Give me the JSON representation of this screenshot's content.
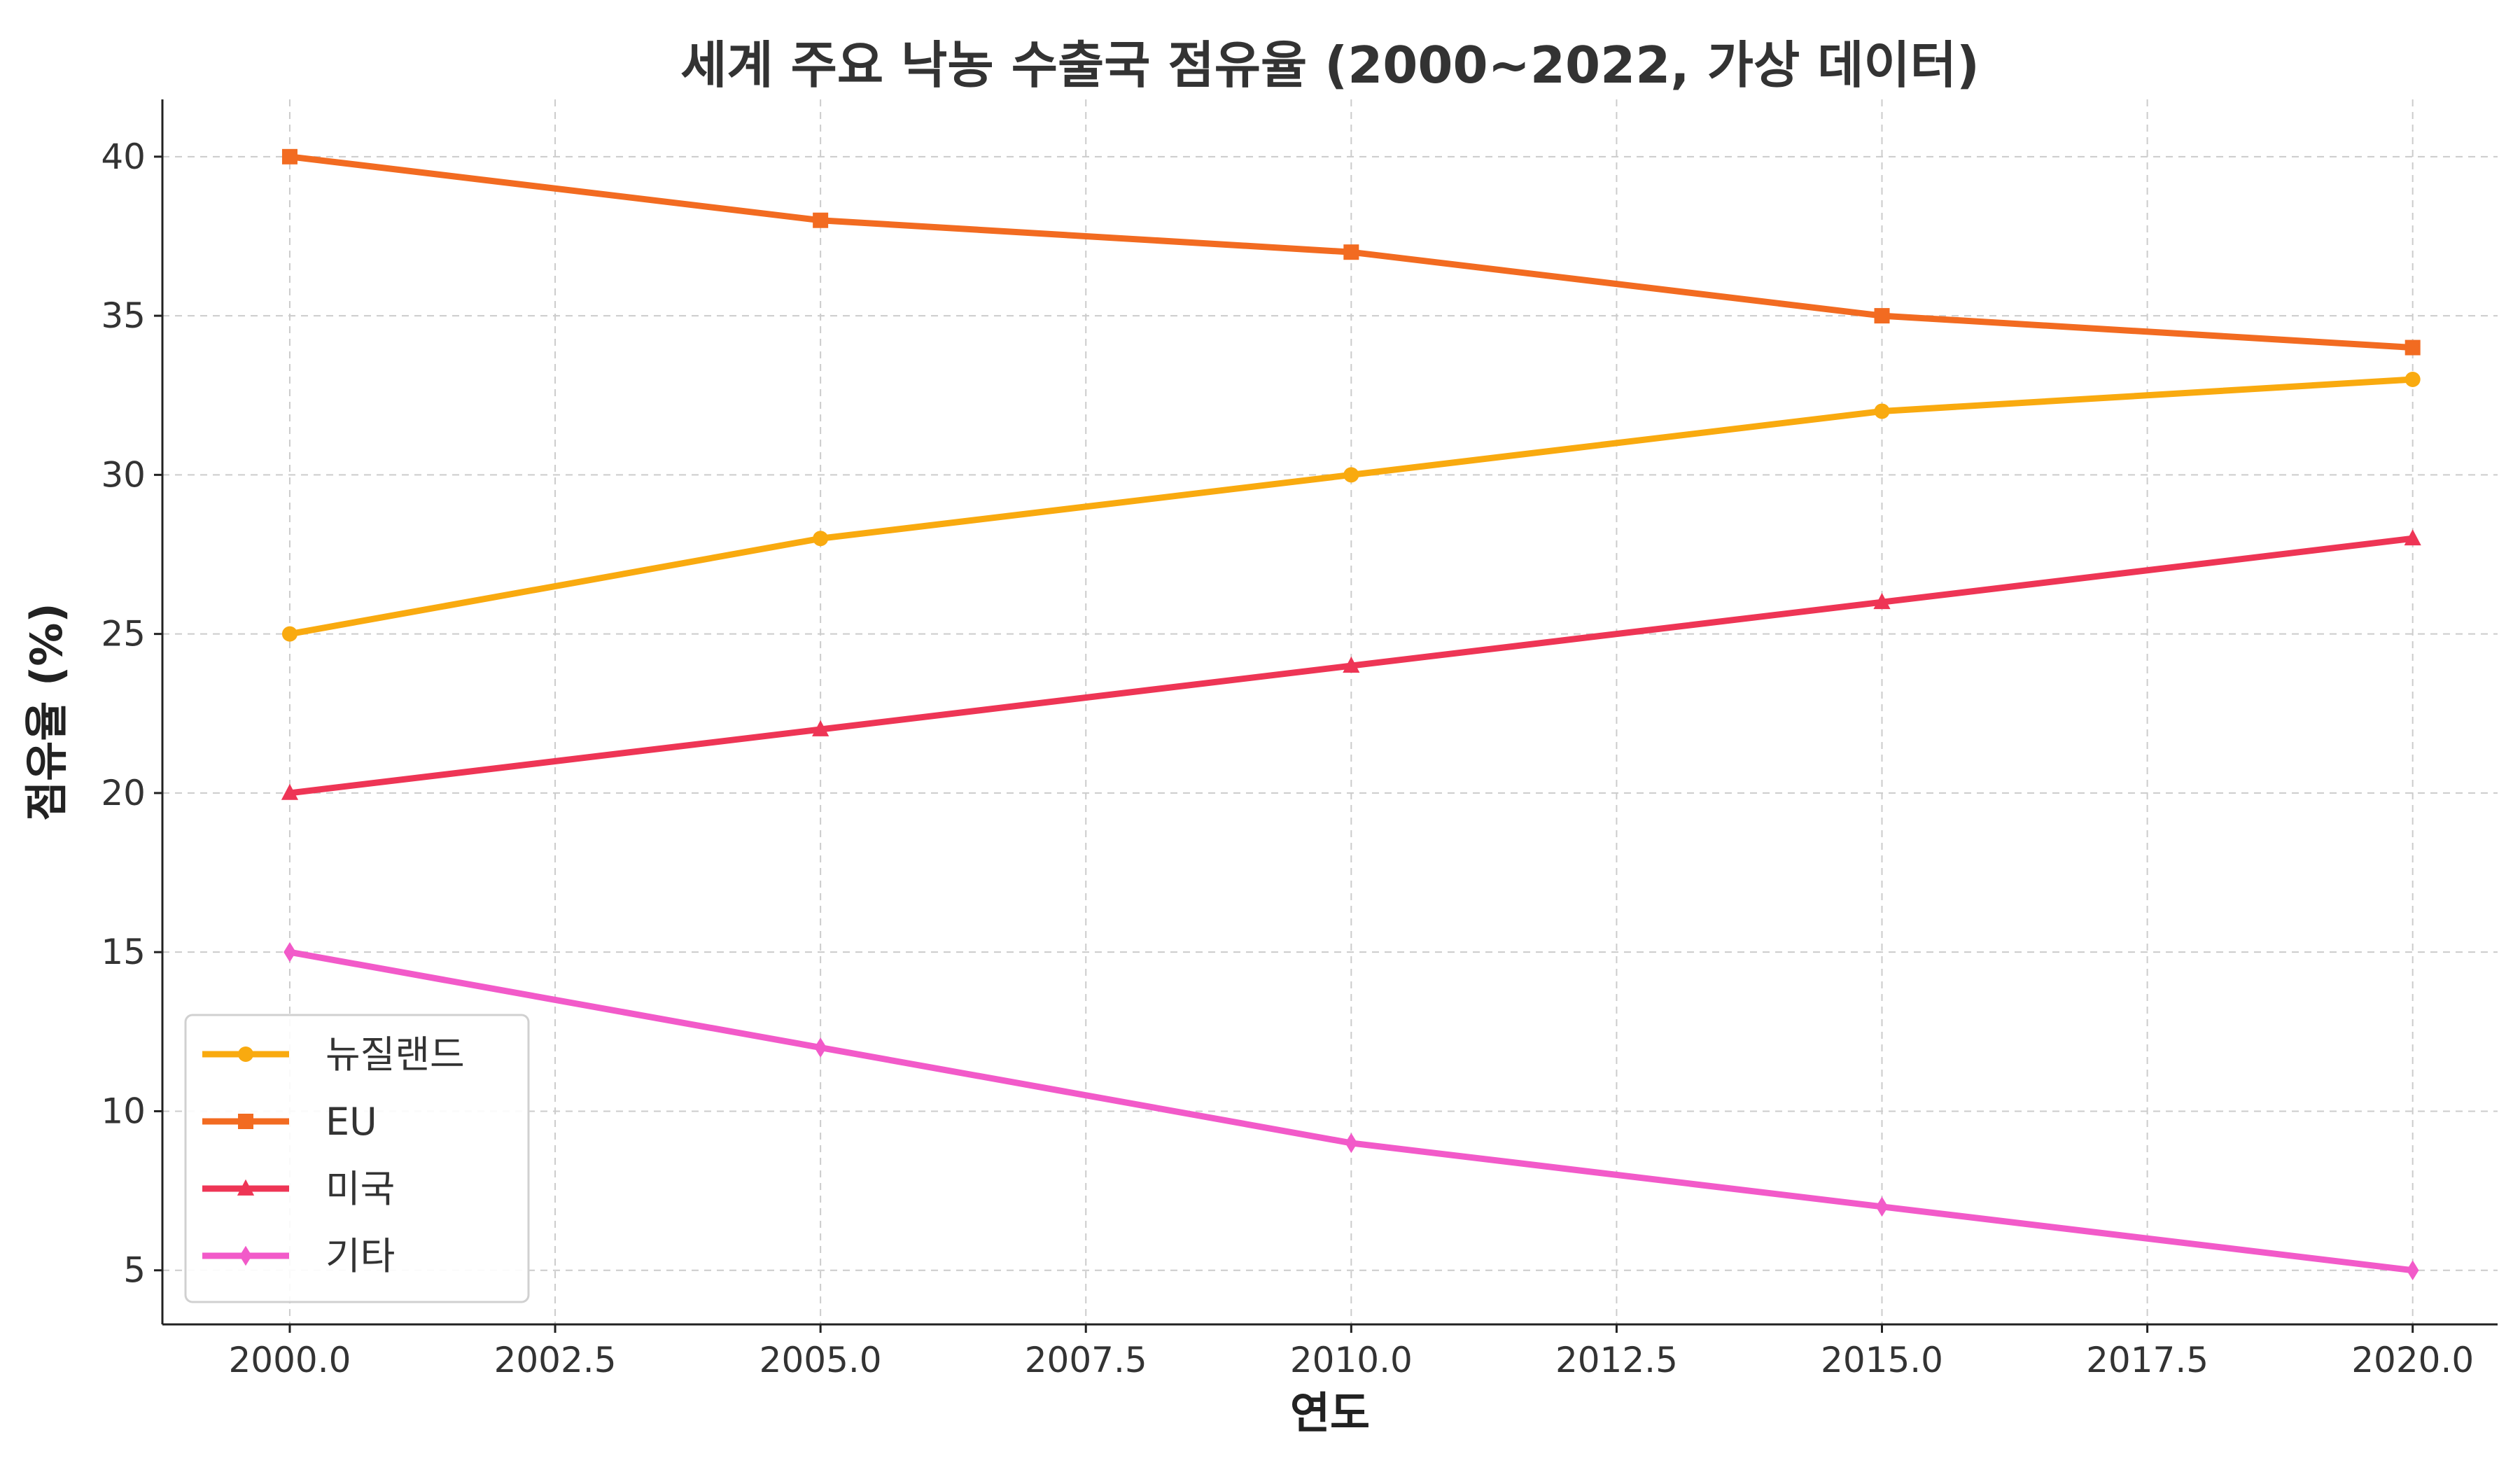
{
  "chart_data": {
    "type": "line",
    "title": "세계 주요 낙농 수출국 점유율 (2000~2022, 가상 데이터)",
    "xlabel": "연도",
    "ylabel": "점유율 (%)",
    "x": [
      2000,
      2005,
      2010,
      2015,
      2020
    ],
    "xlim": [
      1998.8,
      2020.8
    ],
    "ylim": [
      3.3,
      41.8
    ],
    "x_ticks": [
      2000.0,
      2002.5,
      2005.0,
      2007.5,
      2010.0,
      2012.5,
      2015.0,
      2017.5,
      2020.0
    ],
    "x_tick_labels": [
      "2000.0",
      "2002.5",
      "2005.0",
      "2007.5",
      "2010.0",
      "2012.5",
      "2015.0",
      "2017.5",
      "2020.0"
    ],
    "y_ticks": [
      5,
      10,
      15,
      20,
      25,
      30,
      35,
      40
    ],
    "y_tick_labels": [
      "5",
      "10",
      "15",
      "20",
      "25",
      "30",
      "35",
      "40"
    ],
    "grid": true,
    "legend_position": "bottom-left",
    "series": [
      {
        "name": "뉴질랜드",
        "values": [
          25,
          28,
          30,
          32,
          33
        ],
        "color": "#f9aa0f",
        "marker": "circle"
      },
      {
        "name": "EU",
        "values": [
          40,
          38,
          37,
          35,
          34
        ],
        "color": "#f26b21",
        "marker": "square"
      },
      {
        "name": "미국",
        "values": [
          20,
          22,
          24,
          26,
          28
        ],
        "color": "#ee3555",
        "marker": "triangle"
      },
      {
        "name": "기타",
        "values": [
          15,
          12,
          9,
          7,
          5
        ],
        "color": "#f25ac9",
        "marker": "diamond"
      }
    ]
  }
}
